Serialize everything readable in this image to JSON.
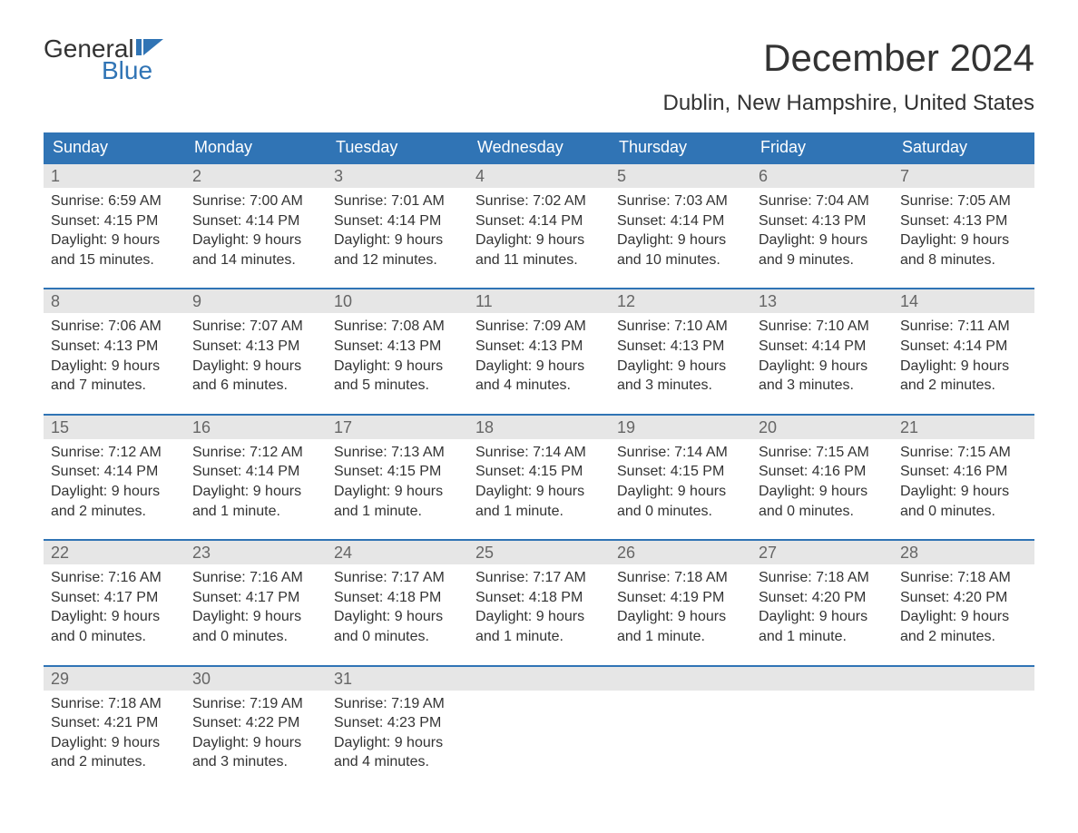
{
  "logo": {
    "word1": "General",
    "word2": "Blue"
  },
  "title": "December 2024",
  "location": "Dublin, New Hampshire, United States",
  "colors": {
    "brand_blue": "#3074b5",
    "header_text": "#ffffff",
    "daynum_bg": "#e6e6e6",
    "daynum_text": "#666666",
    "body_text": "#333333",
    "background": "#ffffff"
  },
  "typography": {
    "title_fontsize": 42,
    "location_fontsize": 24,
    "dow_fontsize": 18,
    "daynum_fontsize": 18,
    "body_fontsize": 16,
    "logo_fontsize": 28
  },
  "layout": {
    "columns": 7,
    "week_border_top_color": "#3074b5",
    "week_border_top_width": 2
  },
  "daysOfWeek": [
    "Sunday",
    "Monday",
    "Tuesday",
    "Wednesday",
    "Thursday",
    "Friday",
    "Saturday"
  ],
  "weeks": [
    [
      {
        "n": "1",
        "sunrise": "6:59 AM",
        "sunset": "4:15 PM",
        "daylight1": "9 hours",
        "daylight2": "and 15 minutes."
      },
      {
        "n": "2",
        "sunrise": "7:00 AM",
        "sunset": "4:14 PM",
        "daylight1": "9 hours",
        "daylight2": "and 14 minutes."
      },
      {
        "n": "3",
        "sunrise": "7:01 AM",
        "sunset": "4:14 PM",
        "daylight1": "9 hours",
        "daylight2": "and 12 minutes."
      },
      {
        "n": "4",
        "sunrise": "7:02 AM",
        "sunset": "4:14 PM",
        "daylight1": "9 hours",
        "daylight2": "and 11 minutes."
      },
      {
        "n": "5",
        "sunrise": "7:03 AM",
        "sunset": "4:14 PM",
        "daylight1": "9 hours",
        "daylight2": "and 10 minutes."
      },
      {
        "n": "6",
        "sunrise": "7:04 AM",
        "sunset": "4:13 PM",
        "daylight1": "9 hours",
        "daylight2": "and 9 minutes."
      },
      {
        "n": "7",
        "sunrise": "7:05 AM",
        "sunset": "4:13 PM",
        "daylight1": "9 hours",
        "daylight2": "and 8 minutes."
      }
    ],
    [
      {
        "n": "8",
        "sunrise": "7:06 AM",
        "sunset": "4:13 PM",
        "daylight1": "9 hours",
        "daylight2": "and 7 minutes."
      },
      {
        "n": "9",
        "sunrise": "7:07 AM",
        "sunset": "4:13 PM",
        "daylight1": "9 hours",
        "daylight2": "and 6 minutes."
      },
      {
        "n": "10",
        "sunrise": "7:08 AM",
        "sunset": "4:13 PM",
        "daylight1": "9 hours",
        "daylight2": "and 5 minutes."
      },
      {
        "n": "11",
        "sunrise": "7:09 AM",
        "sunset": "4:13 PM",
        "daylight1": "9 hours",
        "daylight2": "and 4 minutes."
      },
      {
        "n": "12",
        "sunrise": "7:10 AM",
        "sunset": "4:13 PM",
        "daylight1": "9 hours",
        "daylight2": "and 3 minutes."
      },
      {
        "n": "13",
        "sunrise": "7:10 AM",
        "sunset": "4:14 PM",
        "daylight1": "9 hours",
        "daylight2": "and 3 minutes."
      },
      {
        "n": "14",
        "sunrise": "7:11 AM",
        "sunset": "4:14 PM",
        "daylight1": "9 hours",
        "daylight2": "and 2 minutes."
      }
    ],
    [
      {
        "n": "15",
        "sunrise": "7:12 AM",
        "sunset": "4:14 PM",
        "daylight1": "9 hours",
        "daylight2": "and 2 minutes."
      },
      {
        "n": "16",
        "sunrise": "7:12 AM",
        "sunset": "4:14 PM",
        "daylight1": "9 hours",
        "daylight2": "and 1 minute."
      },
      {
        "n": "17",
        "sunrise": "7:13 AM",
        "sunset": "4:15 PM",
        "daylight1": "9 hours",
        "daylight2": "and 1 minute."
      },
      {
        "n": "18",
        "sunrise": "7:14 AM",
        "sunset": "4:15 PM",
        "daylight1": "9 hours",
        "daylight2": "and 1 minute."
      },
      {
        "n": "19",
        "sunrise": "7:14 AM",
        "sunset": "4:15 PM",
        "daylight1": "9 hours",
        "daylight2": "and 0 minutes."
      },
      {
        "n": "20",
        "sunrise": "7:15 AM",
        "sunset": "4:16 PM",
        "daylight1": "9 hours",
        "daylight2": "and 0 minutes."
      },
      {
        "n": "21",
        "sunrise": "7:15 AM",
        "sunset": "4:16 PM",
        "daylight1": "9 hours",
        "daylight2": "and 0 minutes."
      }
    ],
    [
      {
        "n": "22",
        "sunrise": "7:16 AM",
        "sunset": "4:17 PM",
        "daylight1": "9 hours",
        "daylight2": "and 0 minutes."
      },
      {
        "n": "23",
        "sunrise": "7:16 AM",
        "sunset": "4:17 PM",
        "daylight1": "9 hours",
        "daylight2": "and 0 minutes."
      },
      {
        "n": "24",
        "sunrise": "7:17 AM",
        "sunset": "4:18 PM",
        "daylight1": "9 hours",
        "daylight2": "and 0 minutes."
      },
      {
        "n": "25",
        "sunrise": "7:17 AM",
        "sunset": "4:18 PM",
        "daylight1": "9 hours",
        "daylight2": "and 1 minute."
      },
      {
        "n": "26",
        "sunrise": "7:18 AM",
        "sunset": "4:19 PM",
        "daylight1": "9 hours",
        "daylight2": "and 1 minute."
      },
      {
        "n": "27",
        "sunrise": "7:18 AM",
        "sunset": "4:20 PM",
        "daylight1": "9 hours",
        "daylight2": "and 1 minute."
      },
      {
        "n": "28",
        "sunrise": "7:18 AM",
        "sunset": "4:20 PM",
        "daylight1": "9 hours",
        "daylight2": "and 2 minutes."
      }
    ],
    [
      {
        "n": "29",
        "sunrise": "7:18 AM",
        "sunset": "4:21 PM",
        "daylight1": "9 hours",
        "daylight2": "and 2 minutes."
      },
      {
        "n": "30",
        "sunrise": "7:19 AM",
        "sunset": "4:22 PM",
        "daylight1": "9 hours",
        "daylight2": "and 3 minutes."
      },
      {
        "n": "31",
        "sunrise": "7:19 AM",
        "sunset": "4:23 PM",
        "daylight1": "9 hours",
        "daylight2": "and 4 minutes."
      },
      {
        "empty": true
      },
      {
        "empty": true
      },
      {
        "empty": true
      },
      {
        "empty": true
      }
    ]
  ],
  "labels": {
    "sunrise_prefix": "Sunrise: ",
    "sunset_prefix": "Sunset: ",
    "daylight_prefix": "Daylight: "
  }
}
